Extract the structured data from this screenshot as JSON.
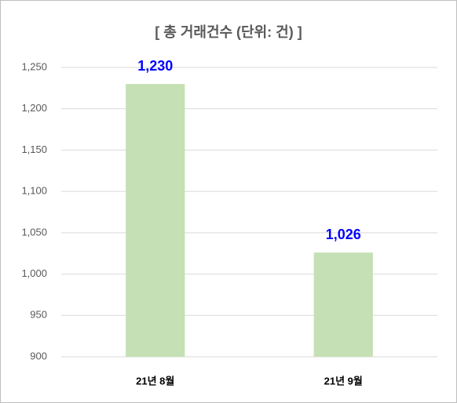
{
  "chart_data": {
    "type": "bar",
    "title": "[ 총 거래건수 (단위: 건) ]",
    "categories": [
      "21년 8월",
      "21년 9월"
    ],
    "values": [
      1230,
      1026
    ],
    "value_labels": [
      "1,230",
      "1,026"
    ],
    "color": "#c5e0b4",
    "ylim": [
      900,
      1250
    ],
    "yticks": [
      900,
      950,
      {
        "value": 1000,
        "label": "1,000"
      },
      {
        "value": 1050,
        "label": "1,050"
      },
      {
        "value": 1100,
        "label": "1,100"
      },
      {
        "value": 1150,
        "label": "1,150"
      },
      {
        "value": 1200,
        "label": "1,200"
      },
      {
        "value": 1250,
        "label": "1,250"
      }
    ],
    "grid": true
  }
}
